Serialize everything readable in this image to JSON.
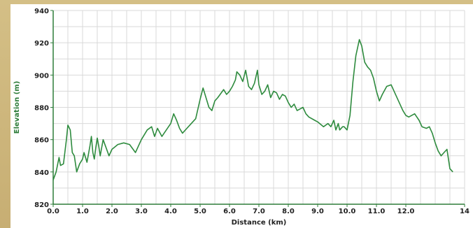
{
  "chart_data": {
    "type": "line",
    "title": "",
    "xlabel": "Distance (km)",
    "ylabel": "Elevation (m)",
    "xlim": [
      0,
      14
    ],
    "ylim": [
      820,
      940
    ],
    "xticks": [
      "0.0",
      "1.0",
      "2.0",
      "3.0",
      "4.0",
      "5.0",
      "6.0",
      "7.0",
      "8.0",
      "9.0",
      "10.0",
      "11.0",
      "12.0",
      "14"
    ],
    "xtick_values": [
      0,
      1,
      2,
      3,
      4,
      5,
      6,
      7,
      8,
      9,
      10,
      11,
      12,
      14
    ],
    "yticks": [
      "820",
      "840",
      "860",
      "880",
      "900",
      "920",
      "940"
    ],
    "ytick_values": [
      820,
      840,
      860,
      880,
      900,
      920,
      940
    ],
    "grid": true,
    "line_color": "#2e8b3e",
    "series": [
      {
        "points": [
          [
            0.0,
            835
          ],
          [
            0.1,
            840
          ],
          [
            0.2,
            849
          ],
          [
            0.25,
            844
          ],
          [
            0.35,
            845
          ],
          [
            0.45,
            860
          ],
          [
            0.5,
            869
          ],
          [
            0.58,
            866
          ],
          [
            0.65,
            852
          ],
          [
            0.72,
            850
          ],
          [
            0.8,
            840
          ],
          [
            0.9,
            845
          ],
          [
            1.0,
            848
          ],
          [
            1.05,
            852
          ],
          [
            1.15,
            846
          ],
          [
            1.25,
            856
          ],
          [
            1.3,
            862
          ],
          [
            1.35,
            852
          ],
          [
            1.4,
            848
          ],
          [
            1.45,
            855
          ],
          [
            1.5,
            861
          ],
          [
            1.55,
            856
          ],
          [
            1.6,
            850
          ],
          [
            1.7,
            860
          ],
          [
            1.8,
            855
          ],
          [
            1.9,
            850
          ],
          [
            2.0,
            854
          ],
          [
            2.2,
            857
          ],
          [
            2.4,
            858
          ],
          [
            2.6,
            857
          ],
          [
            2.8,
            852
          ],
          [
            3.0,
            860
          ],
          [
            3.2,
            866
          ],
          [
            3.35,
            868
          ],
          [
            3.45,
            862
          ],
          [
            3.55,
            867
          ],
          [
            3.7,
            862
          ],
          [
            3.85,
            866
          ],
          [
            4.0,
            870
          ],
          [
            4.1,
            876
          ],
          [
            4.2,
            872
          ],
          [
            4.3,
            867
          ],
          [
            4.4,
            864
          ],
          [
            4.55,
            867
          ],
          [
            4.7,
            870
          ],
          [
            4.85,
            873
          ],
          [
            5.0,
            885
          ],
          [
            5.1,
            892
          ],
          [
            5.2,
            886
          ],
          [
            5.3,
            880
          ],
          [
            5.4,
            878
          ],
          [
            5.5,
            884
          ],
          [
            5.6,
            886
          ],
          [
            5.8,
            891
          ],
          [
            5.9,
            888
          ],
          [
            6.0,
            890
          ],
          [
            6.1,
            893
          ],
          [
            6.2,
            897
          ],
          [
            6.25,
            902
          ],
          [
            6.35,
            900
          ],
          [
            6.45,
            896
          ],
          [
            6.55,
            903
          ],
          [
            6.65,
            893
          ],
          [
            6.75,
            891
          ],
          [
            6.85,
            895
          ],
          [
            6.95,
            903
          ],
          [
            7.0,
            894
          ],
          [
            7.1,
            888
          ],
          [
            7.2,
            890
          ],
          [
            7.3,
            894
          ],
          [
            7.4,
            886
          ],
          [
            7.5,
            890
          ],
          [
            7.6,
            889
          ],
          [
            7.7,
            885
          ],
          [
            7.8,
            888
          ],
          [
            7.9,
            887
          ],
          [
            8.0,
            883
          ],
          [
            8.1,
            880
          ],
          [
            8.2,
            882
          ],
          [
            8.3,
            878
          ],
          [
            8.4,
            879
          ],
          [
            8.5,
            880
          ],
          [
            8.6,
            876
          ],
          [
            8.7,
            874
          ],
          [
            8.9,
            872
          ],
          [
            9.0,
            871
          ],
          [
            9.2,
            868
          ],
          [
            9.35,
            870
          ],
          [
            9.45,
            868
          ],
          [
            9.55,
            872
          ],
          [
            9.62,
            866
          ],
          [
            9.7,
            870
          ],
          [
            9.75,
            866
          ],
          [
            9.85,
            868
          ],
          [
            9.9,
            868
          ],
          [
            10.0,
            866
          ],
          [
            10.1,
            875
          ],
          [
            10.2,
            896
          ],
          [
            10.3,
            912
          ],
          [
            10.42,
            922
          ],
          [
            10.5,
            918
          ],
          [
            10.6,
            908
          ],
          [
            10.7,
            905
          ],
          [
            10.8,
            903
          ],
          [
            10.9,
            898
          ],
          [
            11.0,
            890
          ],
          [
            11.1,
            884
          ],
          [
            11.2,
            888
          ],
          [
            11.35,
            893
          ],
          [
            11.5,
            894
          ],
          [
            11.6,
            890
          ],
          [
            11.75,
            884
          ],
          [
            11.9,
            878
          ],
          [
            12.0,
            875
          ],
          [
            12.1,
            874
          ],
          [
            12.3,
            876
          ],
          [
            12.45,
            872
          ],
          [
            12.55,
            868
          ],
          [
            12.7,
            867
          ],
          [
            12.8,
            868
          ],
          [
            12.9,
            864
          ],
          [
            13.0,
            858
          ],
          [
            13.1,
            853
          ],
          [
            13.2,
            850
          ],
          [
            13.3,
            852
          ],
          [
            13.4,
            854
          ],
          [
            13.5,
            842
          ],
          [
            13.6,
            840
          ]
        ]
      }
    ]
  }
}
